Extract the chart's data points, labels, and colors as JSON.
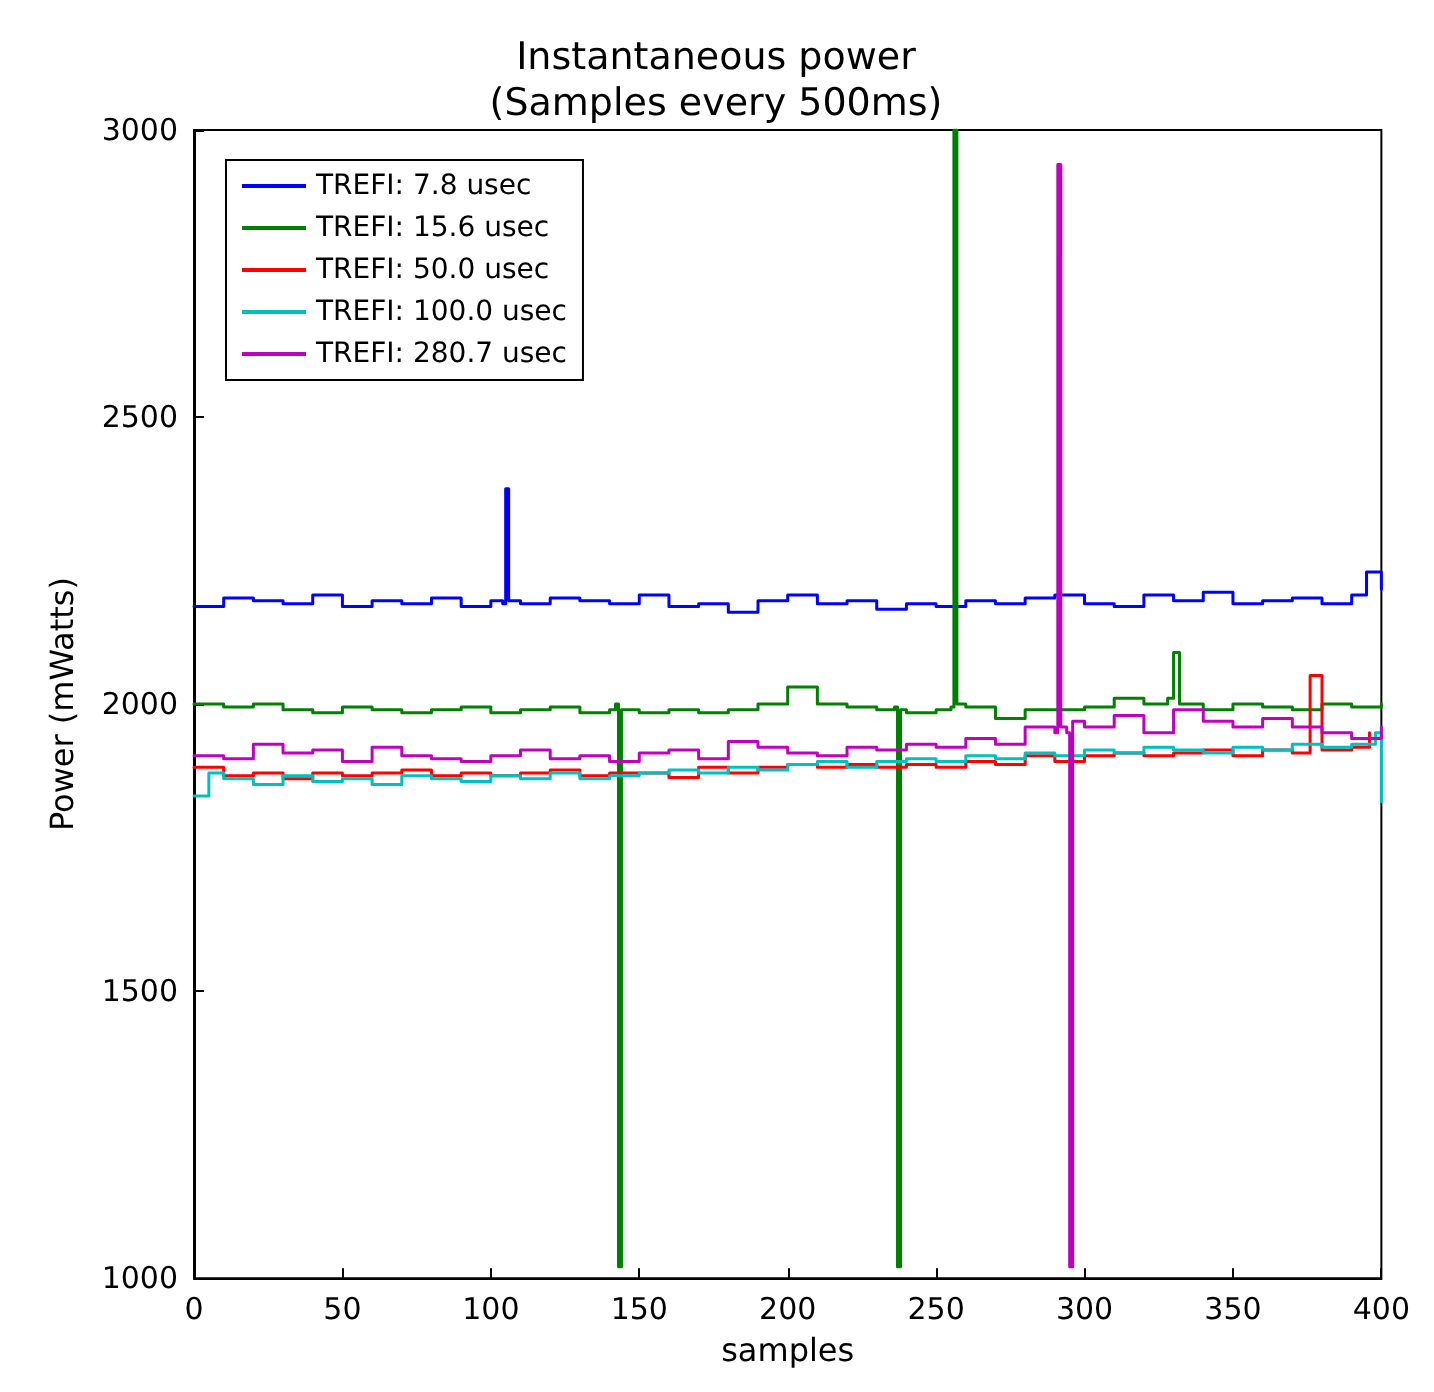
{
  "chart_data": {
    "type": "step",
    "title": "Instantaneous power",
    "subtitle": "(Samples every 500ms)",
    "xlabel": "samples",
    "ylabel": "Power (mWatts)",
    "xlim": [
      0,
      400
    ],
    "xticks": [
      0,
      50,
      100,
      150,
      200,
      250,
      300,
      350,
      400
    ],
    "ylim": [
      1000,
      3000
    ],
    "yticks": [
      1000,
      1500,
      2000,
      2500,
      3000
    ],
    "grid": false,
    "legend": "top left",
    "marker": "none",
    "line_style": "solid",
    "series": [
      {
        "name": "TREFI: 7.8 usec",
        "color": "#0000ff",
        "x": [
          0,
          10,
          20,
          30,
          40,
          50,
          60,
          70,
          80,
          90,
          100,
          104,
          105,
          106,
          110,
          120,
          130,
          140,
          150,
          160,
          170,
          180,
          190,
          200,
          210,
          220,
          230,
          240,
          250,
          260,
          270,
          280,
          290,
          300,
          310,
          320,
          330,
          340,
          350,
          360,
          370,
          380,
          390,
          395,
          400
        ],
        "values": [
          2170,
          2185,
          2180,
          2175,
          2190,
          2170,
          2180,
          2175,
          2185,
          2170,
          2180,
          2175,
          2375,
          2180,
          2175,
          2185,
          2180,
          2175,
          2190,
          2170,
          2175,
          2160,
          2180,
          2190,
          2175,
          2180,
          2165,
          2175,
          2170,
          2180,
          2175,
          2185,
          2190,
          2175,
          2170,
          2190,
          2180,
          2195,
          2175,
          2180,
          2185,
          2175,
          2190,
          2230,
          2200
        ]
      },
      {
        "name": "TREFI: 15.6 usec",
        "color": "#008000",
        "x": [
          0,
          10,
          20,
          30,
          40,
          50,
          60,
          70,
          80,
          90,
          100,
          110,
          120,
          130,
          140,
          142,
          143,
          144,
          150,
          160,
          170,
          180,
          190,
          200,
          210,
          220,
          230,
          236,
          237,
          238,
          240,
          250,
          255,
          256,
          257,
          260,
          270,
          280,
          290,
          300,
          310,
          320,
          328,
          330,
          332,
          340,
          350,
          360,
          370,
          380,
          390,
          400
        ],
        "values": [
          2000,
          1995,
          2000,
          1990,
          1985,
          1995,
          1990,
          1985,
          1990,
          1995,
          1985,
          1990,
          1995,
          1985,
          1990,
          2000,
          1020,
          1990,
          1985,
          1990,
          1985,
          1990,
          2000,
          2030,
          2000,
          1995,
          1990,
          1995,
          1020,
          1990,
          1985,
          1990,
          1995,
          3000,
          2000,
          1995,
          1975,
          1990,
          1990,
          1995,
          2010,
          2000,
          2010,
          2090,
          2000,
          1990,
          2000,
          1995,
          1990,
          2000,
          1995,
          2000
        ]
      },
      {
        "name": "TREFI: 50.0 usec",
        "color": "#ff0000",
        "x": [
          0,
          10,
          20,
          30,
          40,
          50,
          60,
          70,
          80,
          90,
          100,
          110,
          120,
          130,
          140,
          150,
          160,
          170,
          180,
          190,
          200,
          210,
          220,
          230,
          240,
          250,
          260,
          270,
          280,
          290,
          300,
          310,
          320,
          330,
          340,
          350,
          360,
          370,
          376,
          380,
          390,
          396
        ],
        "values": [
          1890,
          1875,
          1880,
          1870,
          1880,
          1875,
          1880,
          1885,
          1875,
          1880,
          1875,
          1880,
          1885,
          1875,
          1880,
          1880,
          1872,
          1890,
          1880,
          1890,
          1895,
          1890,
          1895,
          1890,
          1895,
          1890,
          1900,
          1895,
          1910,
          1900,
          1910,
          1915,
          1910,
          1915,
          1920,
          1910,
          1920,
          1915,
          2050,
          1920,
          1925,
          1950
        ]
      },
      {
        "name": "TREFI: 100.0 usec",
        "color": "#00bfbf",
        "x": [
          0,
          5,
          10,
          20,
          30,
          40,
          50,
          60,
          70,
          80,
          90,
          100,
          110,
          120,
          130,
          140,
          150,
          160,
          170,
          180,
          190,
          200,
          210,
          220,
          230,
          240,
          250,
          260,
          270,
          280,
          290,
          300,
          310,
          320,
          330,
          340,
          350,
          360,
          370,
          380,
          390,
          398,
          400
        ],
        "values": [
          1840,
          1880,
          1870,
          1860,
          1875,
          1865,
          1870,
          1860,
          1875,
          1870,
          1865,
          1875,
          1870,
          1880,
          1870,
          1875,
          1880,
          1885,
          1880,
          1890,
          1885,
          1895,
          1900,
          1890,
          1900,
          1905,
          1900,
          1910,
          1905,
          1915,
          1910,
          1920,
          1915,
          1925,
          1920,
          1915,
          1925,
          1920,
          1930,
          1925,
          1930,
          1950,
          1830
        ]
      },
      {
        "name": "TREFI: 280.7 usec",
        "color": "#bf00bf",
        "x": [
          0,
          10,
          20,
          30,
          40,
          50,
          60,
          70,
          80,
          90,
          100,
          110,
          120,
          130,
          140,
          150,
          160,
          170,
          180,
          190,
          200,
          210,
          220,
          230,
          240,
          250,
          260,
          270,
          280,
          290,
          291,
          292,
          294,
          295,
          296,
          300,
          310,
          320,
          330,
          340,
          350,
          360,
          370,
          380,
          390,
          400
        ],
        "values": [
          1910,
          1905,
          1930,
          1915,
          1920,
          1900,
          1925,
          1910,
          1905,
          1900,
          1910,
          1920,
          1905,
          1910,
          1900,
          1915,
          1920,
          1905,
          1935,
          1925,
          1915,
          1910,
          1925,
          1920,
          1930,
          1925,
          1940,
          1930,
          1960,
          1950,
          2940,
          1960,
          1950,
          1020,
          1970,
          1960,
          1980,
          1950,
          1990,
          1970,
          1960,
          1975,
          1960,
          1950,
          1940,
          1960
        ]
      }
    ]
  }
}
